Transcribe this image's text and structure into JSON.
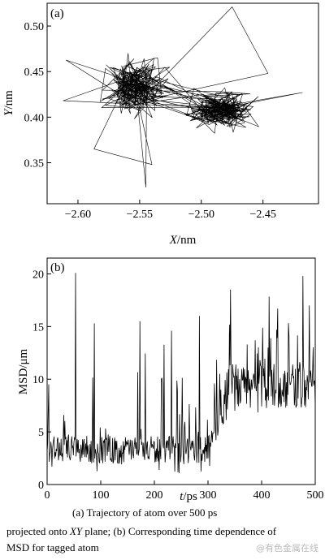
{
  "chart_data": [
    {
      "type": "scatter",
      "panel_label": "(a)",
      "xlabel_italic": "X",
      "xlabel_unit": "/nm",
      "ylabel_italic": "Y",
      "ylabel_unit": "/nm",
      "xlim": [
        -2.625,
        -2.405
      ],
      "ylim": [
        0.305,
        0.525
      ],
      "xticks": [
        -2.6,
        -2.55,
        -2.5,
        -2.45
      ],
      "xtick_labels": [
        "−2.60",
        "−2.55",
        "−2.50",
        "−2.45"
      ],
      "yticks": [
        0.35,
        0.4,
        0.45,
        0.5
      ],
      "ytick_labels": [
        "0.35",
        "0.40",
        "0.45",
        "0.50"
      ],
      "style": "connected trajectory line",
      "clusters": [
        {
          "center": [
            -2.553,
            0.435
          ],
          "spread": [
            0.022,
            0.022
          ]
        },
        {
          "center": [
            -2.483,
            0.408
          ],
          "spread": [
            0.02,
            0.016
          ]
        }
      ],
      "trajectory_extremes": {
        "min_x": -2.612,
        "max_x": -2.418,
        "min_y": 0.323,
        "max_y": 0.521
      }
    },
    {
      "type": "line",
      "panel_label": "(b)",
      "xlabel_italic": "t",
      "xlabel_unit": "/ps",
      "ylabel": "MSD/μm",
      "xlim": [
        0,
        500
      ],
      "ylim": [
        0,
        21.5
      ],
      "xticks": [
        0,
        100,
        200,
        300,
        400,
        500
      ],
      "xtick_labels": [
        "0",
        "100",
        "200",
        "300",
        "400",
        "500"
      ],
      "yticks": [
        0,
        5,
        10,
        15,
        20
      ],
      "ytick_labels": [
        "0",
        "5",
        "10",
        "15",
        "20"
      ],
      "baseline_segments": [
        {
          "t": [
            0,
            320
          ],
          "mean": 2.8
        },
        {
          "t": [
            320,
            500
          ],
          "mean": 8.5
        }
      ],
      "peaks": [
        {
          "t": 53,
          "msd": 20.1
        },
        {
          "t": 88,
          "msd": 15.3
        },
        {
          "t": 173,
          "msd": 15.5
        },
        {
          "t": 232,
          "msd": 14.6
        },
        {
          "t": 284,
          "msd": 16.0
        },
        {
          "t": 342,
          "msd": 18.5
        },
        {
          "t": 430,
          "msd": 16.7
        },
        {
          "t": 477,
          "msd": 19.8
        },
        {
          "t": 489,
          "msd": 17.0
        }
      ]
    }
  ],
  "caption": {
    "line1": "(a)  Trajectory  of  atom  over  500  ps",
    "line2_before": "projected onto ",
    "line2_italic": "XY",
    "line2_after": " plane; (b) Corresponding time dependence of",
    "line3": "MSD for tagged atom"
  },
  "watermark": "@有色金属在线"
}
